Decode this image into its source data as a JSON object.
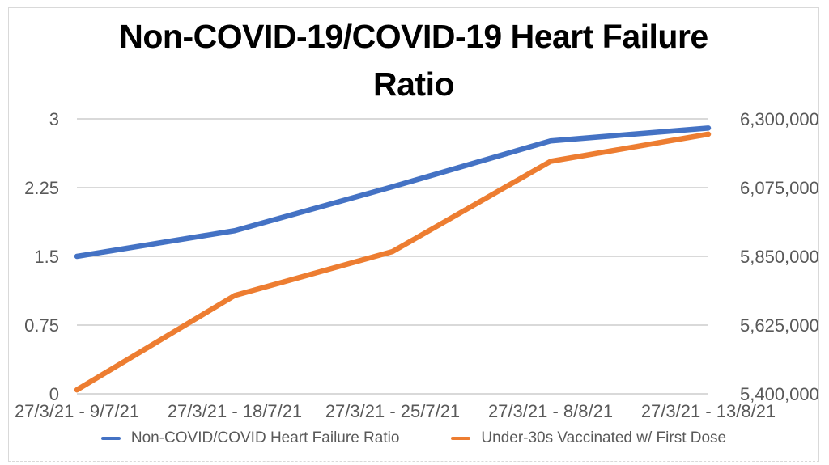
{
  "page": {
    "background_color": "#ffffff",
    "frame_border_color": "#d9d9d9"
  },
  "chart_data": {
    "type": "line",
    "title": "Non-COVID-19/COVID-19 Heart Failure Ratio",
    "categories": [
      "27/3/21 - 9/7/21",
      "27/3/21 - 18/7/21",
      "27/3/21 - 25/7/21",
      "27/3/21 - 8/8/21",
      "27/3/21 - 13/8/21"
    ],
    "series": [
      {
        "name": "Non-COVID/COVID Heart Failure Ratio",
        "axis": "left",
        "color": "#4472C4",
        "values": [
          1.5,
          1.78,
          2.26,
          2.76,
          2.9
        ]
      },
      {
        "name": "Under-30s Vaccinated w/ First Dose",
        "axis": "right",
        "color": "#ED7D31",
        "values": [
          5413000,
          5722000,
          5866000,
          6161000,
          6250000
        ]
      }
    ],
    "left_axis": {
      "min": 0,
      "max": 3,
      "tick_labels": [
        "0",
        "0.75",
        "1.5",
        "2.25",
        "3"
      ]
    },
    "right_axis": {
      "min": 5400000,
      "max": 6300000,
      "tick_labels": [
        "5,400,000",
        "5,625,000",
        "5,850,000",
        "6,075,000",
        "6,300,000"
      ]
    },
    "grid": true,
    "gridline_color": "#d9d9d9",
    "legend_position": "bottom",
    "axis_label_color": "#595959"
  }
}
